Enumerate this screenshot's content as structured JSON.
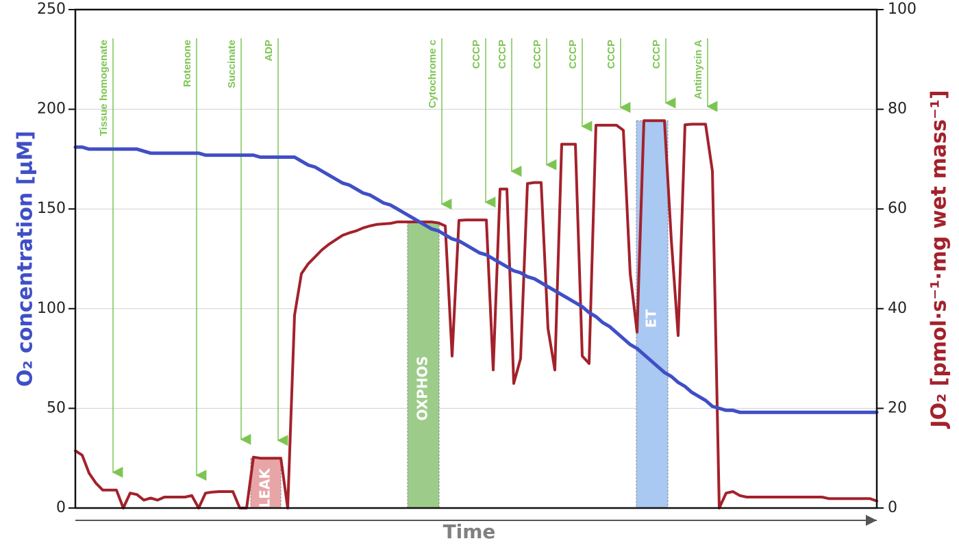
{
  "chart_data": {
    "type": "line",
    "xlabel": "Time",
    "ylabel": "O₂ concentration [µM]",
    "y2label": "JO₂ [pmol·s⁻¹·mg wet mass⁻¹]",
    "ylim": [
      0,
      250
    ],
    "yticks": [
      0,
      50,
      100,
      150,
      200,
      250
    ],
    "y2lim": [
      0,
      100
    ],
    "y2ticks": [
      0,
      20,
      40,
      60,
      80,
      100
    ],
    "grid": true,
    "categories": [
      null,
      null,
      null,
      null,
      null,
      null,
      null,
      null,
      null,
      null,
      null,
      null,
      null,
      null,
      null,
      null,
      null,
      null,
      null,
      null,
      null,
      null,
      null,
      null,
      null,
      null,
      null,
      null,
      null,
      null,
      null,
      null,
      null,
      null,
      null,
      null,
      null,
      null,
      null,
      null,
      null,
      null,
      null,
      null,
      null,
      null,
      null,
      null,
      null,
      null,
      null,
      null,
      null,
      null,
      null,
      null,
      null,
      null,
      null,
      null,
      null,
      null,
      null,
      null,
      null,
      null,
      null,
      null,
      null,
      null,
      null,
      null,
      null,
      null,
      null,
      null,
      null,
      null,
      null,
      null,
      null,
      null,
      null,
      null,
      null,
      null,
      null,
      null,
      null,
      null,
      null,
      null,
      null,
      null,
      null,
      null,
      null,
      null,
      null,
      null,
      null,
      null,
      null,
      null,
      null,
      null,
      null,
      null,
      null,
      null,
      null,
      null,
      null,
      null,
      null,
      null,
      null,
      null
    ],
    "series": [
      {
        "name": "O2 concentration",
        "color": "#3f4fc6",
        "axis": "y",
        "values": [
          181,
          181,
          180,
          180,
          180,
          180,
          180,
          180,
          180,
          180,
          179,
          178,
          178,
          178,
          178,
          178,
          178,
          178,
          178,
          177,
          177,
          177,
          177,
          177,
          177,
          177,
          177,
          176,
          176,
          176,
          176,
          176,
          176,
          174,
          172,
          171,
          169,
          167,
          165,
          163,
          162,
          160,
          158,
          157,
          155,
          153,
          152,
          150,
          148,
          146,
          144,
          142,
          140,
          139,
          137,
          135,
          134,
          132,
          130,
          128,
          127,
          125,
          123,
          121,
          119,
          118,
          116,
          115,
          113,
          111,
          109,
          107,
          105,
          103,
          101,
          98,
          96,
          93,
          91,
          88,
          85,
          82,
          80,
          77,
          74,
          71,
          68,
          66,
          63,
          61,
          58,
          56,
          54,
          51,
          50,
          49,
          49,
          48,
          48,
          48,
          48,
          48,
          48,
          48,
          48,
          48,
          48,
          48,
          48,
          48,
          48,
          48,
          48,
          48,
          48,
          48,
          48,
          48
        ]
      },
      {
        "name": "JO2",
        "color": "#a3212b",
        "axis": "y2",
        "values": [
          11.5,
          10.6,
          7,
          5,
          3.6,
          3.6,
          3.6,
          0,
          3,
          2.7,
          1.6,
          2,
          1.6,
          2.2,
          2.2,
          2.2,
          2.2,
          2.5,
          0,
          3,
          3.2,
          3.3,
          3.3,
          3.3,
          0,
          0,
          10.2,
          10,
          10,
          10,
          10,
          0,
          38.7,
          47,
          49,
          50.4,
          51.8,
          52.9,
          53.8,
          54.7,
          55.2,
          55.6,
          56.2,
          56.6,
          56.9,
          57,
          57.1,
          57.4,
          57.4,
          57.4,
          57.4,
          57.4,
          57.4,
          57.2,
          56.6,
          30.5,
          57.7,
          57.8,
          57.8,
          57.8,
          57.8,
          27.7,
          64,
          64,
          25,
          30,
          65.1,
          65.3,
          65.3,
          36,
          27.7,
          73,
          73,
          73,
          30.5,
          29,
          76.8,
          76.8,
          76.8,
          76.8,
          75.8,
          47,
          35.3,
          77.7,
          77.7,
          77.7,
          77.7,
          53.8,
          34.6,
          76.9,
          77,
          77,
          77,
          67.6,
          0,
          3,
          3.3,
          2.5,
          2.2,
          2.2,
          2.2,
          2.2,
          2.2,
          2.2,
          2.2,
          2.2,
          2.2,
          2.2,
          2.2,
          2.2,
          1.9,
          1.9,
          1.9,
          1.9,
          1.9,
          1.9,
          1.9,
          1.4
        ]
      }
    ],
    "events": [
      {
        "label": "Tissue homogenate",
        "at": 5.5
      },
      {
        "label": "Rotenone",
        "at": 17.7
      },
      {
        "label": "Succinate",
        "at": 24.2
      },
      {
        "label": "ADP",
        "at": 29.6
      },
      {
        "label": "Cytochrome c",
        "at": 53.5
      },
      {
        "label": "CCCP",
        "at": 59.9
      },
      {
        "label": "CCCP",
        "at": 63.7
      },
      {
        "label": "CCCP",
        "at": 68.8
      },
      {
        "label": "CCCP",
        "at": 74
      },
      {
        "label": "CCCP",
        "at": 79.6
      },
      {
        "label": "CCCP",
        "at": 86.2
      },
      {
        "label": "Antimycin A",
        "at": 92.3
      }
    ],
    "regions": [
      {
        "label": "LEAK",
        "from": 25.6,
        "to": 30,
        "top": 10,
        "color": "#e8a5a8",
        "label_y": 4
      },
      {
        "label": "OXPHOS",
        "from": 48.5,
        "to": 53.1,
        "top": 57.4,
        "color": "#9dcc8a",
        "label_y": 24
      },
      {
        "label": "ET",
        "from": 81.9,
        "to": 86.5,
        "top": 77.7,
        "color": "#a9c8f2",
        "label_y": 38
      }
    ]
  }
}
